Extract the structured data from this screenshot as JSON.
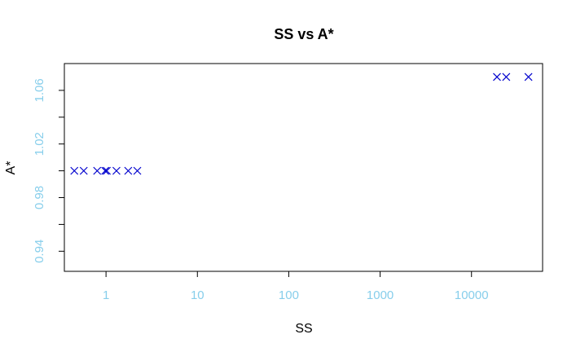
{
  "chart_data": {
    "type": "scatter",
    "title": "SS vs A*",
    "xlabel": "SS",
    "ylabel": "A*",
    "xscale": "log",
    "xlim": [
      0.35,
      60000
    ],
    "ylim": [
      0.925,
      1.08
    ],
    "xticks": [
      1,
      10,
      100,
      1000,
      10000
    ],
    "xtick_labels": [
      "1",
      "10",
      "100",
      "1000",
      "10000"
    ],
    "yticks": [
      0.94,
      0.98,
      1.02,
      1.06
    ],
    "ytick_labels": [
      "0.94",
      "0.98",
      "1.02",
      "1.06"
    ],
    "grid": false,
    "marker": "x",
    "colors": {
      "point": "#0000cd",
      "tick_label": "#87ceeb",
      "axis": "#000000"
    },
    "series": [
      {
        "x": [
          0.45,
          0.57,
          0.8,
          0.98,
          1.02,
          1.3,
          1.75,
          2.2,
          19000,
          24000,
          42000
        ],
        "y": [
          1.0,
          1.0,
          1.0,
          1.0,
          1.0,
          1.0,
          1.0,
          1.0,
          1.07,
          1.07,
          1.07
        ]
      }
    ]
  }
}
